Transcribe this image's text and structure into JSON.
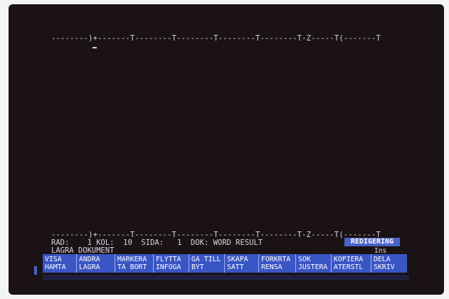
{
  "ruler_top": "--------)+-------T--------T--------T--------T--------T-Z-----T(-------T",
  "ruler_bottom": "--------)+-------T--------T--------T--------T--------T-Z-----T(-------T",
  "status": {
    "text": "RAD:    1 KOL:  10  SIDA:   1  DOK: WORD RESULT"
  },
  "message": "LAGRA DOKUMENT",
  "mode": "REDIGERING",
  "ins": "Ins",
  "keys": [
    {
      "top": "VISA",
      "bottom": "HAMTA"
    },
    {
      "top": "ANDRA",
      "bottom": "LAGRA"
    },
    {
      "top": "MARKERA",
      "bottom": "TA BORT"
    },
    {
      "top": "FLYTTA",
      "bottom": "INFOGA"
    },
    {
      "top": "GA TILL",
      "bottom": "BYT"
    },
    {
      "top": "SKAPA",
      "bottom": "SATT"
    },
    {
      "top": "FORKRTA",
      "bottom": "RENSA"
    },
    {
      "top": "SOK",
      "bottom": "JUSTERA"
    },
    {
      "top": "KOPIERA",
      "bottom": "ATERSTL"
    },
    {
      "top": "DELA",
      "bottom": "SKRIV"
    }
  ],
  "colors": {
    "screen": "#1a1214",
    "text": "#d9d4e2",
    "keybar": "#3a55c4",
    "mode": "#4a63c8"
  }
}
